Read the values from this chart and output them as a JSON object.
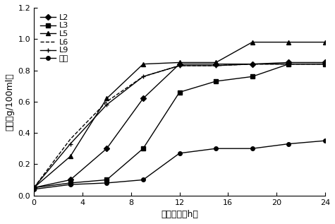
{
  "series": {
    "L2": {
      "x": [
        0,
        3,
        6,
        9,
        12,
        15,
        18,
        21,
        24
      ],
      "y": [
        0.05,
        0.1,
        0.3,
        0.62,
        0.84,
        0.84,
        0.84,
        0.85,
        0.85
      ],
      "marker": "D",
      "linestyle": "-",
      "markersize": 4,
      "markerfacecolor": "black"
    },
    "L3": {
      "x": [
        0,
        3,
        6,
        9,
        12,
        15,
        18,
        21,
        24
      ],
      "y": [
        0.05,
        0.08,
        0.1,
        0.3,
        0.66,
        0.73,
        0.76,
        0.84,
        0.84
      ],
      "marker": "s",
      "linestyle": "-",
      "markersize": 4,
      "markerfacecolor": "black"
    },
    "L5": {
      "x": [
        0,
        3,
        6,
        9,
        12,
        15,
        18,
        21,
        24
      ],
      "y": [
        0.05,
        0.25,
        0.62,
        0.84,
        0.85,
        0.85,
        0.98,
        0.98,
        0.98
      ],
      "marker": "^",
      "linestyle": "-",
      "markersize": 5,
      "markerfacecolor": "black"
    },
    "L6": {
      "x": [
        0,
        3,
        6,
        9,
        12,
        15,
        18,
        21,
        24
      ],
      "y": [
        0.05,
        0.36,
        0.6,
        0.76,
        0.83,
        0.83,
        0.84,
        0.84,
        0.84
      ],
      "marker": "None",
      "linestyle": "--",
      "markersize": 0,
      "markerfacecolor": "black"
    },
    "L9": {
      "x": [
        0,
        3,
        6,
        9,
        12,
        15,
        18,
        21,
        24
      ],
      "y": [
        0.05,
        0.33,
        0.58,
        0.76,
        0.83,
        0.83,
        0.84,
        0.84,
        0.84
      ],
      "marker": "+",
      "linestyle": "-",
      "markersize": 5,
      "markerfacecolor": "black"
    },
    "无椒": {
      "x": [
        0,
        3,
        6,
        9,
        12,
        15,
        18,
        21,
        24
      ],
      "y": [
        0.04,
        0.07,
        0.08,
        0.1,
        0.27,
        0.3,
        0.3,
        0.33,
        0.35
      ],
      "marker": "o",
      "linestyle": "-",
      "markersize": 4,
      "markerfacecolor": "black"
    }
  },
  "ylabel": "总酸（g/100ml）",
  "xlabel": "培养时间（h）",
  "ylim": [
    0,
    1.2
  ],
  "xlim": [
    0,
    24
  ],
  "yticks": [
    0,
    0.2,
    0.4,
    0.6,
    0.8,
    1.0,
    1.2
  ],
  "xticks": [
    0,
    4,
    8,
    12,
    16,
    20,
    24
  ],
  "legend_order": [
    "L2",
    "L3",
    "L5",
    "L6",
    "L9",
    "无椒"
  ]
}
